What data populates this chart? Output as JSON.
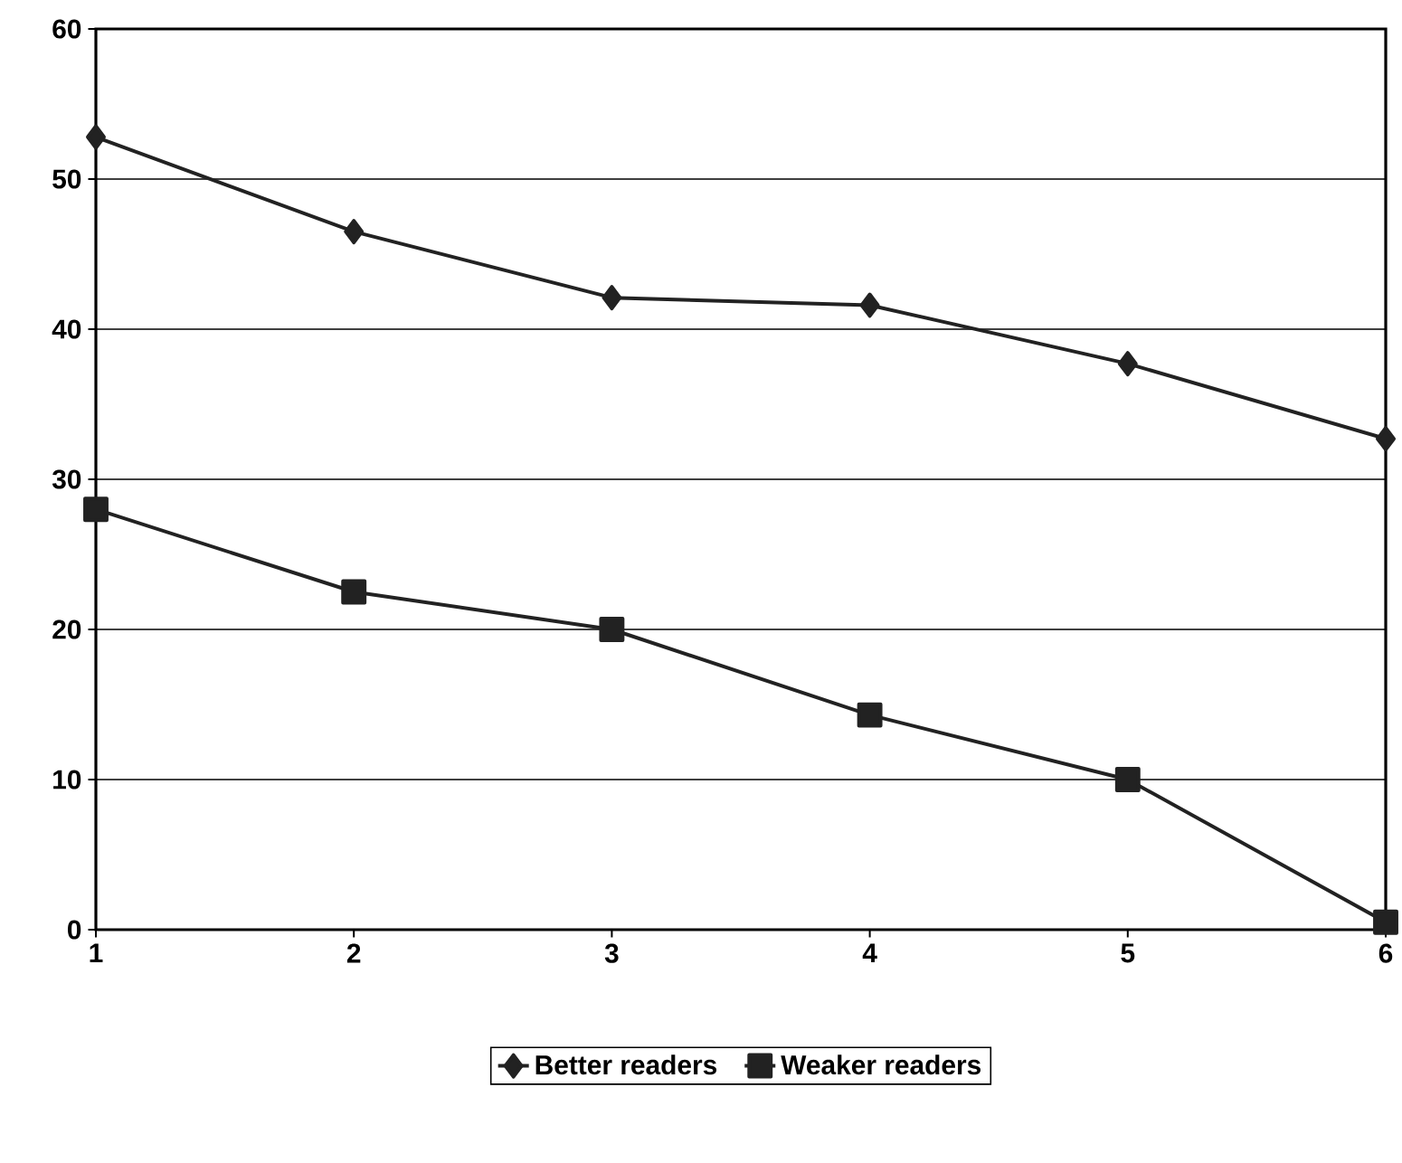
{
  "chart_data": {
    "type": "line",
    "xlim": [
      1,
      6
    ],
    "xticks": [
      1,
      2,
      3,
      4,
      5,
      6
    ],
    "ylim": [
      0,
      60
    ],
    "yticks": [
      0,
      10,
      20,
      30,
      40,
      50,
      60
    ],
    "grid": "y",
    "legend": "bottom",
    "x": [
      1,
      2,
      3,
      4,
      5,
      6
    ],
    "series": [
      {
        "name": "Better readers",
        "color": "#222222",
        "marker": "diamond",
        "values": [
          52.8,
          46.5,
          42.1,
          41.6,
          37.7,
          32.7
        ]
      },
      {
        "name": "Weaker readers",
        "color": "#222222",
        "marker": "square",
        "values": [
          28.0,
          22.5,
          20.0,
          14.3,
          10.0,
          0.5
        ]
      }
    ]
  }
}
